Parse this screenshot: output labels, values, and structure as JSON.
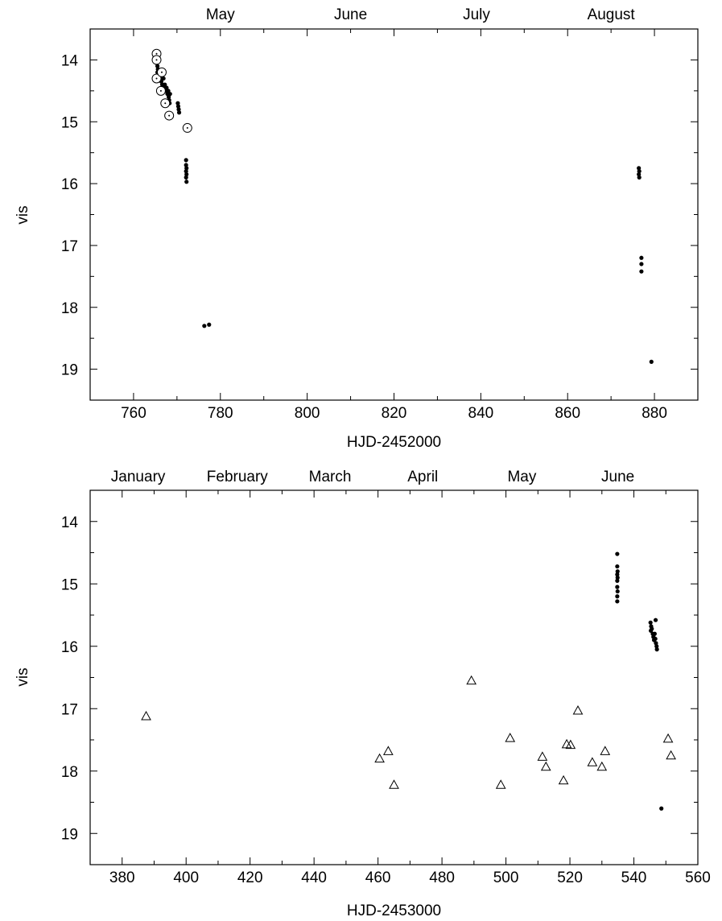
{
  "chart_data": [
    {
      "type": "scatter",
      "xlabel": "HJD-2452000",
      "ylabel": "vis",
      "xlim": [
        750,
        890
      ],
      "ylim": [
        13.5,
        19.5
      ],
      "y_inverted": true,
      "grid": false,
      "x_ticks": [
        760,
        780,
        800,
        820,
        840,
        860,
        880
      ],
      "y_ticks": [
        14,
        15,
        16,
        17,
        18,
        19
      ],
      "top_month_labels": [
        {
          "label": "May",
          "x": 780
        },
        {
          "label": "June",
          "x": 810
        },
        {
          "label": "July",
          "x": 839
        },
        {
          "label": "August",
          "x": 870
        }
      ],
      "series": [
        {
          "marker": "filled-dot",
          "points": [
            [
              765.4,
              14.05
            ],
            [
              765.5,
              14.1
            ],
            [
              765.6,
              14.15
            ],
            [
              765.5,
              14.2
            ],
            [
              765.7,
              14.25
            ],
            [
              765.8,
              14.3
            ],
            [
              766.0,
              14.2
            ],
            [
              766.2,
              14.3
            ],
            [
              766.4,
              14.35
            ],
            [
              766.6,
              14.4
            ],
            [
              766.8,
              14.45
            ],
            [
              766.9,
              14.3
            ],
            [
              767.0,
              14.5
            ],
            [
              767.2,
              14.4
            ],
            [
              767.4,
              14.5
            ],
            [
              767.6,
              14.45
            ],
            [
              767.8,
              14.55
            ],
            [
              768.0,
              14.5
            ],
            [
              768.1,
              14.6
            ],
            [
              768.2,
              14.65
            ],
            [
              768.3,
              14.7
            ],
            [
              768.4,
              14.55
            ],
            [
              770.2,
              14.7
            ],
            [
              770.3,
              14.75
            ],
            [
              770.4,
              14.8
            ],
            [
              770.5,
              14.85
            ],
            [
              772.1,
              15.62
            ],
            [
              772.1,
              15.7
            ],
            [
              772.2,
              15.75
            ],
            [
              772.1,
              15.8
            ],
            [
              772.2,
              15.85
            ],
            [
              772.1,
              15.9
            ],
            [
              772.2,
              15.97
            ],
            [
              776.3,
              18.3
            ],
            [
              777.4,
              18.28
            ],
            [
              876.4,
              15.75
            ],
            [
              876.5,
              15.8
            ],
            [
              876.4,
              15.85
            ],
            [
              876.5,
              15.9
            ],
            [
              877.0,
              17.2
            ],
            [
              877.0,
              17.3
            ],
            [
              877.0,
              17.42
            ],
            [
              879.3,
              18.88
            ]
          ]
        },
        {
          "marker": "open-circle-dot",
          "points": [
            [
              765.3,
              13.9
            ],
            [
              765.3,
              14.0
            ],
            [
              765.3,
              14.3
            ],
            [
              766.5,
              14.2
            ],
            [
              766.3,
              14.5
            ],
            [
              767.3,
              14.7
            ],
            [
              768.2,
              14.9
            ],
            [
              772.4,
              15.1
            ]
          ]
        }
      ]
    },
    {
      "type": "scatter",
      "xlabel": "HJD-2453000",
      "ylabel": "vis",
      "xlim": [
        370,
        560
      ],
      "ylim": [
        13.5,
        19.5
      ],
      "y_inverted": true,
      "grid": false,
      "x_ticks": [
        380,
        400,
        420,
        440,
        460,
        480,
        500,
        520,
        540,
        560
      ],
      "y_ticks": [
        14,
        15,
        16,
        17,
        18,
        19
      ],
      "top_month_labels": [
        {
          "label": "January",
          "x": 385
        },
        {
          "label": "February",
          "x": 416
        },
        {
          "label": "March",
          "x": 445
        },
        {
          "label": "April",
          "x": 474
        },
        {
          "label": "May",
          "x": 505
        },
        {
          "label": "June",
          "x": 535
        }
      ],
      "series": [
        {
          "marker": "filled-dot",
          "points": [
            [
              534.8,
              14.52
            ],
            [
              534.8,
              14.72
            ],
            [
              534.9,
              14.8
            ],
            [
              534.8,
              14.85
            ],
            [
              534.9,
              14.9
            ],
            [
              534.8,
              14.95
            ],
            [
              534.8,
              15.05
            ],
            [
              534.9,
              15.12
            ],
            [
              534.8,
              15.2
            ],
            [
              534.8,
              15.28
            ],
            [
              545.2,
              15.62
            ],
            [
              545.4,
              15.68
            ],
            [
              545.3,
              15.75
            ],
            [
              545.6,
              15.72
            ],
            [
              545.9,
              15.8
            ],
            [
              546.1,
              15.85
            ],
            [
              546.3,
              15.9
            ],
            [
              546.5,
              15.8
            ],
            [
              546.7,
              15.88
            ],
            [
              546.9,
              15.95
            ],
            [
              547.1,
              16.0
            ],
            [
              547.2,
              16.05
            ],
            [
              546.8,
              15.58
            ],
            [
              548.6,
              18.6
            ]
          ]
        },
        {
          "marker": "open-triangle",
          "points": [
            [
              387.5,
              17.12
            ],
            [
              460.5,
              17.8
            ],
            [
              463.2,
              17.68
            ],
            [
              465.0,
              18.22
            ],
            [
              489.2,
              16.55
            ],
            [
              498.4,
              18.22
            ],
            [
              501.3,
              17.47
            ],
            [
              511.4,
              17.77
            ],
            [
              512.5,
              17.93
            ],
            [
              518.0,
              18.15
            ],
            [
              519.0,
              17.57
            ],
            [
              520.2,
              17.58
            ],
            [
              522.5,
              17.03
            ],
            [
              527.0,
              17.86
            ],
            [
              530.0,
              17.93
            ],
            [
              531.0,
              17.68
            ],
            [
              550.7,
              17.48
            ],
            [
              551.6,
              17.75
            ]
          ]
        }
      ]
    }
  ]
}
